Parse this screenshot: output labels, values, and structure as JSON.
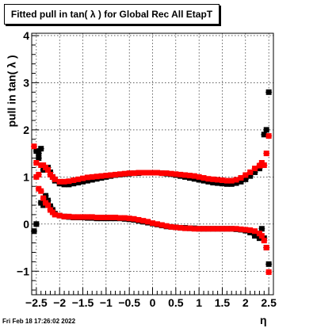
{
  "chart_data": {
    "type": "scatter",
    "title": "Fitted pull in tan( λ ) for Global Rec All EtapT",
    "xlabel": "η",
    "ylabel": "pull in tan( λ )",
    "xlim": [
      -2.6,
      2.6
    ],
    "ylim": [
      -1.5,
      4.05
    ],
    "x_ticks": [
      -2.5,
      -2,
      -1.5,
      -1,
      -0.5,
      0,
      0.5,
      1,
      1.5,
      2,
      2.5
    ],
    "x_tick_labels": [
      "−2.5",
      "−2",
      "−1.5",
      "−1",
      "−0.5",
      "0",
      "0.5",
      "1",
      "1.5",
      "2",
      "2.5"
    ],
    "y_ticks": [
      -1,
      0,
      1,
      2,
      3,
      4
    ],
    "y_tick_labels": [
      "−1",
      "0",
      "1",
      "2",
      "3",
      "4"
    ],
    "grid": true,
    "series": [
      {
        "color": "#000000",
        "x": [
          -2.5,
          -2.45,
          -2.4,
          -2.35,
          -2.3,
          -2.25,
          -2.2,
          -2.15,
          -2.1,
          -2.0,
          -1.9,
          -1.8,
          -1.7,
          -1.6,
          -1.5,
          -1.4,
          -1.3,
          -1.2,
          -1.1,
          -1.0,
          -0.9,
          -0.8,
          -0.7,
          -0.6,
          -0.5,
          -0.4,
          -0.3,
          -0.2,
          -0.1,
          0.0,
          0.1,
          0.2,
          0.3,
          0.4,
          0.5,
          0.6,
          0.7,
          0.8,
          0.9,
          1.0,
          1.1,
          1.2,
          1.3,
          1.4,
          1.5,
          1.6,
          1.7,
          1.8,
          1.9,
          2.0,
          2.1,
          2.2,
          2.3,
          2.35,
          2.4,
          2.45,
          2.5
        ],
        "y": [
          1.55,
          1.5,
          1.6,
          1.15,
          1.2,
          1.2,
          1.1,
          1.0,
          0.92,
          0.86,
          0.84,
          0.84,
          0.86,
          0.88,
          0.9,
          0.92,
          0.94,
          0.96,
          0.98,
          1.0,
          1.02,
          1.04,
          1.05,
          1.06,
          1.07,
          1.08,
          1.08,
          1.09,
          1.09,
          1.09,
          1.09,
          1.08,
          1.07,
          1.06,
          1.04,
          1.02,
          1.0,
          0.98,
          0.96,
          0.94,
          0.92,
          0.9,
          0.88,
          0.87,
          0.86,
          0.85,
          0.85,
          0.87,
          0.9,
          0.95,
          1.02,
          1.1,
          1.18,
          1.25,
          1.9,
          2.0,
          2.8
        ]
      },
      {
        "color": "#000000",
        "x": [
          -2.55,
          -2.5,
          -2.45,
          -2.4,
          -2.35,
          -2.3,
          -2.25,
          -2.2,
          -2.15,
          -2.1,
          -2.0,
          -1.9,
          -1.8,
          -1.7,
          -1.6,
          -1.5,
          -1.4,
          -1.3,
          -1.2,
          -1.1,
          -1.0,
          -0.9,
          -0.8,
          -0.7,
          -0.6,
          -0.5,
          -0.4,
          -0.3,
          -0.2,
          -0.1,
          0.0,
          0.1,
          0.2,
          0.3,
          0.4,
          0.5,
          0.6,
          0.7,
          0.8,
          0.9,
          1.0,
          1.1,
          1.2,
          1.3,
          1.4,
          1.5,
          1.6,
          1.7,
          1.8,
          1.9,
          2.0,
          2.1,
          2.2,
          2.3,
          2.35,
          2.4,
          2.45,
          2.5
        ],
        "y": [
          -0.15,
          0.0,
          1.4,
          0.45,
          0.4,
          0.6,
          0.5,
          0.38,
          0.3,
          0.22,
          0.18,
          0.16,
          0.15,
          0.14,
          0.14,
          0.14,
          0.13,
          0.13,
          0.12,
          0.12,
          0.12,
          0.12,
          0.12,
          0.12,
          0.11,
          0.1,
          0.09,
          0.07,
          0.05,
          0.03,
          0.01,
          -0.01,
          -0.03,
          -0.05,
          -0.06,
          -0.07,
          -0.08,
          -0.08,
          -0.09,
          -0.09,
          -0.1,
          -0.1,
          -0.1,
          -0.1,
          -0.1,
          -0.1,
          -0.1,
          -0.1,
          -0.11,
          -0.12,
          -0.14,
          -0.18,
          -0.25,
          -0.3,
          -0.1,
          -0.3,
          -0.5,
          -0.85
        ]
      },
      {
        "color": "#ff0000",
        "x": [
          -2.55,
          -2.5,
          -2.45,
          -2.4,
          -2.35,
          -2.3,
          -2.25,
          -2.2,
          -2.15,
          -2.1,
          -2.0,
          -1.9,
          -1.8,
          -1.7,
          -1.6,
          -1.5,
          -1.4,
          -1.3,
          -1.2,
          -1.1,
          -1.0,
          -0.9,
          -0.8,
          -0.7,
          -0.6,
          -0.5,
          -0.4,
          -0.3,
          -0.2,
          -0.1,
          0.0,
          0.1,
          0.2,
          0.3,
          0.4,
          0.5,
          0.6,
          0.7,
          0.8,
          0.9,
          1.0,
          1.1,
          1.2,
          1.3,
          1.4,
          1.5,
          1.6,
          1.7,
          1.8,
          1.9,
          2.0,
          2.1,
          2.2,
          2.3,
          2.35,
          2.4,
          2.45,
          2.5
        ],
        "y": [
          1.65,
          1.3,
          1.05,
          1.25,
          1.25,
          1.2,
          1.15,
          1.05,
          1.0,
          0.95,
          0.9,
          0.9,
          0.91,
          0.93,
          0.95,
          0.97,
          0.99,
          1.0,
          1.01,
          1.02,
          1.03,
          1.04,
          1.05,
          1.06,
          1.07,
          1.08,
          1.08,
          1.09,
          1.09,
          1.09,
          1.09,
          1.09,
          1.08,
          1.08,
          1.07,
          1.06,
          1.05,
          1.04,
          1.03,
          1.02,
          1.0,
          0.98,
          0.96,
          0.95,
          0.94,
          0.93,
          0.92,
          0.92,
          0.94,
          0.98,
          1.04,
          1.1,
          1.18,
          1.24,
          1.3,
          1.25,
          1.5,
          1.87
        ]
      },
      {
        "color": "#ff0000",
        "x": [
          -2.5,
          -2.45,
          -2.4,
          -2.35,
          -2.3,
          -2.25,
          -2.2,
          -2.15,
          -2.1,
          -2.0,
          -1.9,
          -1.8,
          -1.7,
          -1.6,
          -1.5,
          -1.4,
          -1.3,
          -1.2,
          -1.1,
          -1.0,
          -0.9,
          -0.8,
          -0.7,
          -0.6,
          -0.5,
          -0.4,
          -0.3,
          -0.2,
          -0.1,
          0.0,
          0.1,
          0.2,
          0.3,
          0.4,
          0.5,
          0.6,
          0.7,
          0.8,
          0.9,
          1.0,
          1.1,
          1.2,
          1.3,
          1.4,
          1.5,
          1.6,
          1.7,
          1.8,
          1.9,
          2.0,
          2.1,
          2.2,
          2.3,
          2.35,
          2.4,
          2.45,
          2.5
        ],
        "y": [
          1.0,
          0.75,
          0.7,
          0.55,
          0.45,
          0.4,
          0.3,
          0.25,
          0.2,
          0.18,
          0.16,
          0.16,
          0.15,
          0.15,
          0.15,
          0.15,
          0.15,
          0.14,
          0.14,
          0.14,
          0.14,
          0.14,
          0.13,
          0.13,
          0.12,
          0.11,
          0.09,
          0.07,
          0.05,
          0.02,
          0.0,
          -0.02,
          -0.04,
          -0.06,
          -0.07,
          -0.08,
          -0.09,
          -0.09,
          -0.1,
          -0.1,
          -0.1,
          -0.1,
          -0.1,
          -0.1,
          -0.1,
          -0.1,
          -0.1,
          -0.1,
          -0.11,
          -0.12,
          -0.13,
          -0.15,
          -0.2,
          -0.25,
          -0.35,
          -0.5,
          -1.02
        ]
      }
    ]
  },
  "timestamp": "Fri Feb 18 17:26:02 2022"
}
